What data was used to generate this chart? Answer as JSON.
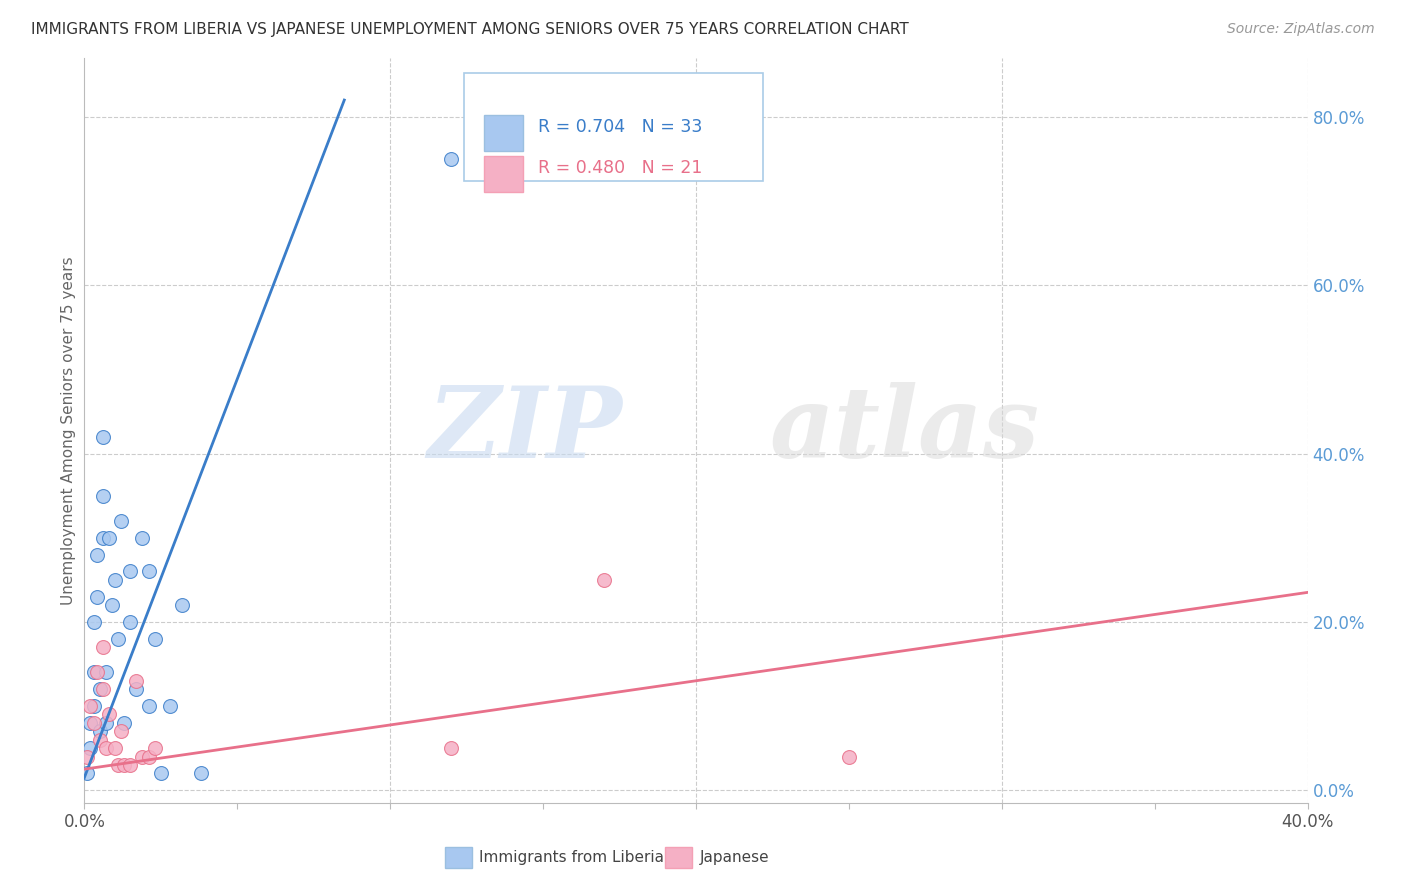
{
  "title": "IMMIGRANTS FROM LIBERIA VS JAPANESE UNEMPLOYMENT AMONG SENIORS OVER 75 YEARS CORRELATION CHART",
  "source": "Source: ZipAtlas.com",
  "ylabel": "Unemployment Among Seniors over 75 years",
  "xlim": [
    0.0,
    0.4
  ],
  "ylim": [
    -0.015,
    0.87
  ],
  "yticks_right": [
    0.0,
    0.2,
    0.4,
    0.6,
    0.8
  ],
  "yticklabels_right": [
    "0.0%",
    "20.0%",
    "40.0%",
    "60.0%",
    "80.0%"
  ],
  "blue_R": 0.704,
  "blue_N": 33,
  "pink_R": 0.48,
  "pink_N": 21,
  "blue_color": "#a8c8f0",
  "pink_color": "#f5b0c5",
  "blue_line_color": "#3a7dc9",
  "pink_line_color": "#e8708a",
  "legend_blue_label": "Immigrants from Liberia",
  "legend_pink_label": "Japanese",
  "watermark_zip": "ZIP",
  "watermark_atlas": "atlas",
  "blue_scatter_x": [
    0.001,
    0.002,
    0.002,
    0.003,
    0.003,
    0.003,
    0.004,
    0.004,
    0.005,
    0.005,
    0.006,
    0.006,
    0.006,
    0.007,
    0.007,
    0.008,
    0.009,
    0.01,
    0.011,
    0.012,
    0.013,
    0.015,
    0.015,
    0.017,
    0.019,
    0.021,
    0.021,
    0.023,
    0.025,
    0.028,
    0.032,
    0.038,
    0.12
  ],
  "blue_scatter_y": [
    0.02,
    0.05,
    0.08,
    0.1,
    0.14,
    0.2,
    0.23,
    0.28,
    0.07,
    0.12,
    0.3,
    0.35,
    0.42,
    0.08,
    0.14,
    0.3,
    0.22,
    0.25,
    0.18,
    0.32,
    0.08,
    0.2,
    0.26,
    0.12,
    0.3,
    0.1,
    0.26,
    0.18,
    0.02,
    0.1,
    0.22,
    0.02,
    0.75
  ],
  "pink_scatter_x": [
    0.001,
    0.002,
    0.003,
    0.004,
    0.005,
    0.006,
    0.006,
    0.007,
    0.008,
    0.01,
    0.011,
    0.012,
    0.013,
    0.015,
    0.017,
    0.019,
    0.021,
    0.023,
    0.12,
    0.17,
    0.25
  ],
  "pink_scatter_y": [
    0.04,
    0.1,
    0.08,
    0.14,
    0.06,
    0.12,
    0.17,
    0.05,
    0.09,
    0.05,
    0.03,
    0.07,
    0.03,
    0.03,
    0.13,
    0.04,
    0.04,
    0.05,
    0.05,
    0.25,
    0.04
  ],
  "blue_line_x": [
    0.0,
    0.085
  ],
  "blue_line_y": [
    0.015,
    0.82
  ],
  "pink_line_x": [
    0.0,
    0.4
  ],
  "pink_line_y": [
    0.025,
    0.235
  ],
  "background_color": "#ffffff",
  "grid_color": "#cccccc",
  "title_color": "#333333",
  "axis_label_color": "#666666",
  "right_tick_color": "#5b9bd5",
  "marker_size": 100
}
